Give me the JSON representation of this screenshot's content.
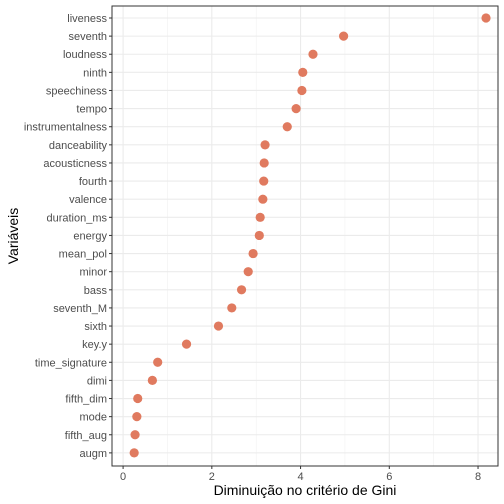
{
  "chart_data": {
    "type": "scatter",
    "xlabel": "Diminuição no critério de Gini",
    "ylabel": "Variáveis",
    "xlim": [
      -0.25,
      8.45
    ],
    "x_ticks": [
      0,
      2,
      4,
      6,
      8
    ],
    "grid": true,
    "point_color": "#E07A5F",
    "categories": [
      "liveness",
      "seventh",
      "loudness",
      "ninth",
      "speechiness",
      "tempo",
      "instrumentalness",
      "danceability",
      "acousticness",
      "fourth",
      "valence",
      "duration_ms",
      "energy",
      "mean_pol",
      "minor",
      "bass",
      "seventh_M",
      "sixth",
      "key.y",
      "time_signature",
      "dimi",
      "fifth_dim",
      "mode",
      "fifth_aug",
      "augm"
    ],
    "values": [
      8.18,
      4.97,
      4.28,
      4.05,
      4.03,
      3.9,
      3.7,
      3.2,
      3.18,
      3.17,
      3.15,
      3.09,
      3.07,
      2.93,
      2.82,
      2.67,
      2.45,
      2.15,
      1.43,
      0.78,
      0.66,
      0.33,
      0.31,
      0.27,
      0.25
    ]
  }
}
